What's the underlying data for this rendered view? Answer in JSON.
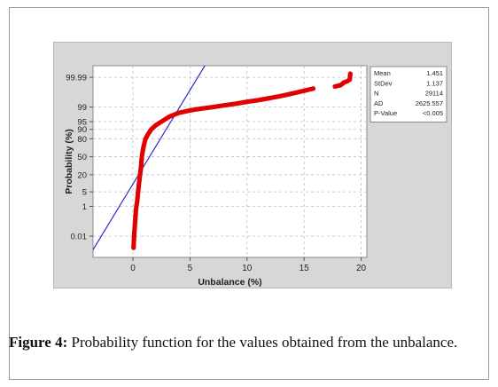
{
  "caption": {
    "label": "Figure 4:",
    "text": " Probability function for the values obtained from the unbalance."
  },
  "chart_data": {
    "type": "scatter",
    "subtype": "normal-probability-plot",
    "title": "",
    "xlabel": "Unbalance (%)",
    "ylabel": "Probability (%)",
    "xlim": [
      -3.5,
      20.5
    ],
    "x_ticks": [
      0,
      5,
      10,
      15,
      20
    ],
    "y_scale": "normal-probability",
    "y_ticks": [
      0.01,
      1,
      5,
      20,
      50,
      80,
      90,
      95,
      99,
      99.99
    ],
    "grid": true,
    "colors": {
      "points": "#e00000",
      "fit_line": "#2a2acc",
      "grid": "#bdbdbd",
      "plot_background": "#ffffff",
      "figure_background": "#d7d7d7"
    },
    "fit_line": {
      "mean": 1.451,
      "stdev": 1.137
    },
    "points": [
      [
        0.05,
        0.001
      ],
      [
        0.1,
        0.01
      ],
      [
        0.18,
        0.1
      ],
      [
        0.25,
        0.5
      ],
      [
        0.3,
        1
      ],
      [
        0.38,
        2
      ],
      [
        0.45,
        5
      ],
      [
        0.52,
        10
      ],
      [
        0.58,
        15
      ],
      [
        0.62,
        20
      ],
      [
        0.66,
        25
      ],
      [
        0.7,
        30
      ],
      [
        0.74,
        40
      ],
      [
        0.78,
        50
      ],
      [
        0.85,
        60
      ],
      [
        0.95,
        70
      ],
      [
        1.1,
        80
      ],
      [
        1.3,
        85
      ],
      [
        1.6,
        90
      ],
      [
        2.0,
        93
      ],
      [
        2.5,
        95
      ],
      [
        3.2,
        97
      ],
      [
        4.0,
        98
      ],
      [
        5.0,
        98.5
      ],
      [
        6.0,
        98.8
      ],
      [
        7.0,
        99
      ],
      [
        8.0,
        99.2
      ],
      [
        9.0,
        99.35
      ],
      [
        10.0,
        99.5
      ],
      [
        11.0,
        99.6
      ],
      [
        12.0,
        99.7
      ],
      [
        13.0,
        99.78
      ],
      [
        14.0,
        99.85
      ],
      [
        15.0,
        99.9
      ],
      [
        15.8,
        99.93
      ],
      [
        17.7,
        99.95
      ],
      [
        18.2,
        99.96
      ],
      [
        18.5,
        99.975
      ],
      [
        18.8,
        99.98
      ],
      [
        19.0,
        99.985
      ],
      [
        19.05,
        99.995
      ]
    ]
  },
  "stats": {
    "rows": [
      {
        "label": "Mean",
        "value": "1.451"
      },
      {
        "label": "StDev",
        "value": "1.137"
      },
      {
        "label": "N",
        "value": "29114"
      },
      {
        "label": "AD",
        "value": "2625.557"
      },
      {
        "label": "P-Value",
        "value": "<0.005"
      }
    ]
  }
}
